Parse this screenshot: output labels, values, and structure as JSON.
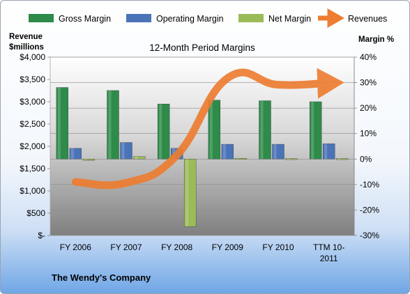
{
  "chart_data": {
    "type": "bar",
    "title": "12-Month Period Margins",
    "company": "The Wendy's Company",
    "y_left_label_line1": "Revenue",
    "y_left_label_line2": "$millions",
    "y_right_label": "Margin %",
    "categories": [
      [
        "FY 2006"
      ],
      [
        "FY 2007"
      ],
      [
        "FY 2008"
      ],
      [
        "FY 2009"
      ],
      [
        "FY 2010"
      ],
      [
        "TTM 10-",
        "2011"
      ]
    ],
    "y_left_ticks": [
      "$4,000",
      "$3,500",
      "$3,000",
      "$2,500",
      "$2,000",
      "$1,500",
      "$1,000",
      "$500",
      "$-"
    ],
    "y_right_ticks": [
      "40%",
      "30%",
      "20%",
      "10%",
      "0%",
      "-10%",
      "-20%",
      "-30%"
    ],
    "y_left_lim": [
      0,
      4000
    ],
    "y_right_lim": [
      -30,
      40
    ],
    "legend_position": "top",
    "series": [
      {
        "name": "Gross Margin",
        "axis": "right",
        "type": "bar",
        "color": "#2e8b4a",
        "values": [
          28.1,
          26.9,
          21.6,
          23.1,
          22.9,
          22.5
        ]
      },
      {
        "name": "Operating Margin",
        "axis": "right",
        "type": "bar",
        "color": "#4a73b8",
        "values": [
          4.2,
          6.5,
          4.2,
          5.8,
          5.8,
          6.0
        ]
      },
      {
        "name": "Net Margin",
        "axis": "right",
        "type": "bar",
        "color": "#9bbb59",
        "values": [
          -0.5,
          1.0,
          -26.5,
          0.3,
          0.2,
          0.2
        ]
      },
      {
        "name": "Revenues",
        "axis": "left",
        "type": "line",
        "color": "#ed7d31",
        "values": [
          1200,
          1180,
          1800,
          3530,
          3380,
          3420
        ]
      }
    ]
  }
}
